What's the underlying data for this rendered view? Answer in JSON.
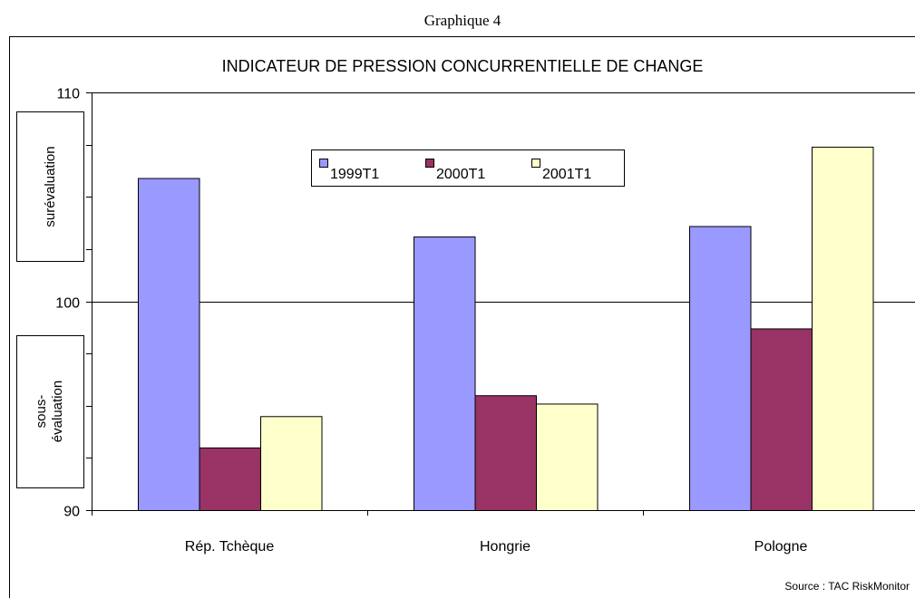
{
  "chart_data": {
    "type": "bar",
    "caption": "Graphique 4",
    "title": "INDICATEUR DE PRESSION CONCURRENTIELLE DE CHANGE",
    "categories": [
      "Rép. Tchèque",
      "Hongrie",
      "Pologne"
    ],
    "series": [
      {
        "name": "1999T1",
        "color": "#9999ff",
        "values": [
          105.9,
          103.1,
          103.6
        ]
      },
      {
        "name": "2000T1",
        "color": "#993366",
        "values": [
          93.0,
          95.5,
          98.7
        ]
      },
      {
        "name": "2001T1",
        "color": "#ffffcc",
        "values": [
          94.5,
          95.1,
          107.4
        ]
      }
    ],
    "ylim": [
      90,
      110
    ],
    "yticks": [
      90,
      100,
      110
    ],
    "yminor_ticks": [
      92.5,
      95,
      97.5,
      102.5,
      105,
      107.5
    ],
    "grid": true,
    "legend_position": "top",
    "annotations": {
      "upper": "surévaluation",
      "lower": [
        "sous-",
        "évaluation"
      ]
    },
    "source": "Source : TAC RiskMonitor"
  }
}
